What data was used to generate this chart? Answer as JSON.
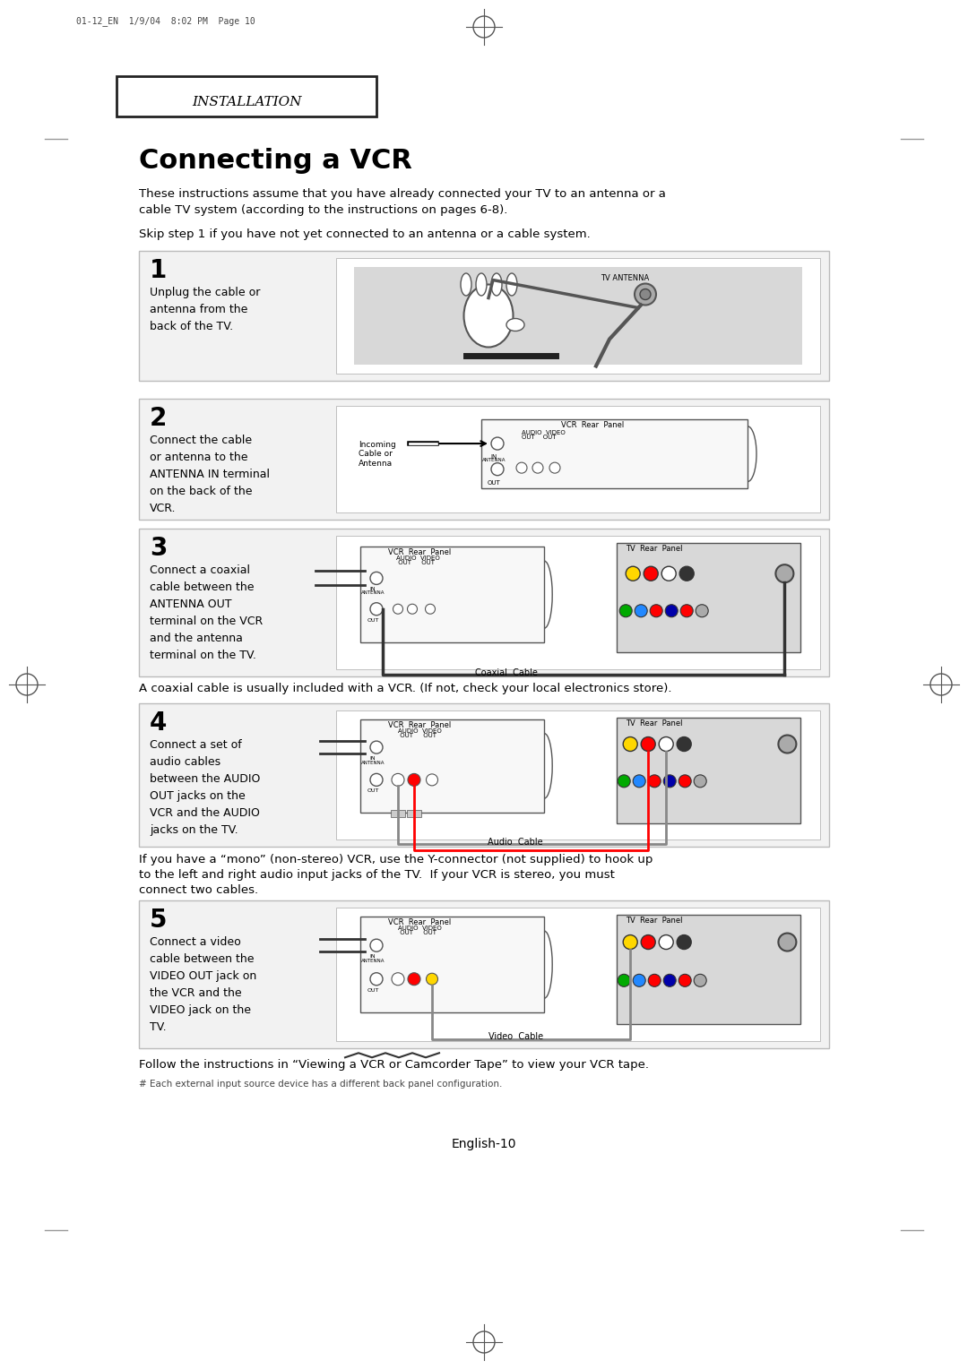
{
  "bg_color": "#ffffff",
  "page_header_text": "01-12_EN  1/9/04  8:02 PM  Page 10",
  "section_title": "INSTALLATION",
  "main_title": "Connecting a VCR",
  "intro_text_1": "These instructions assume that you have already connected your TV to an antenna or a\ncable TV system (according to the instructions on pages 6-8).",
  "intro_text_2": "Skip step 1 if you have not yet connected to an antenna or a cable system.",
  "step1_num": "1",
  "step1_text": "Unplug the cable or\nantenna from the\nback of the TV.",
  "step2_num": "2",
  "step2_text": "Connect the cable\nor antenna to the\nANTENNA IN terminal\non the back of the\nVCR.",
  "step2_label": "Incoming\nCable or\nAntenna",
  "step3_num": "3",
  "step3_text": "Connect a coaxial\ncable between the\nANTENNA OUT\nterminal on the VCR\nand the antenna\nterminal on the TV.",
  "step3_note": "A coaxial cable is usually included with a VCR. (If not, check your local electronics store).",
  "step4_num": "4",
  "step4_text": "Connect a set of\naudio cables\nbetween the AUDIO\nOUT jacks on the\nVCR and the AUDIO\njacks on the TV.",
  "step4_note_1": "If you have a “mono” (non-stereo) VCR, use the Y-connector (not supplied) to hook up",
  "step4_note_2": "to the left and right audio input jacks of the TV.  If your VCR is stereo, you must",
  "step4_note_3": "connect two cables.",
  "step5_num": "5",
  "step5_text": "Connect a video\ncable between the\nVIDEO OUT jack on\nthe VCR and the\nVIDEO jack on the\nTV.",
  "footer_note": "Follow the instructions in “Viewing a VCR or Camcorder Tape” to view your VCR tape.",
  "footer_small": "# Each external input source device has a different back panel configuration.",
  "page_num": "English-10",
  "light_gray": "#e8e8e8",
  "mid_gray": "#cccccc",
  "dark_gray": "#888888",
  "box_bg": "#f5f5f5",
  "diagram_bg": "#e0e0e0"
}
